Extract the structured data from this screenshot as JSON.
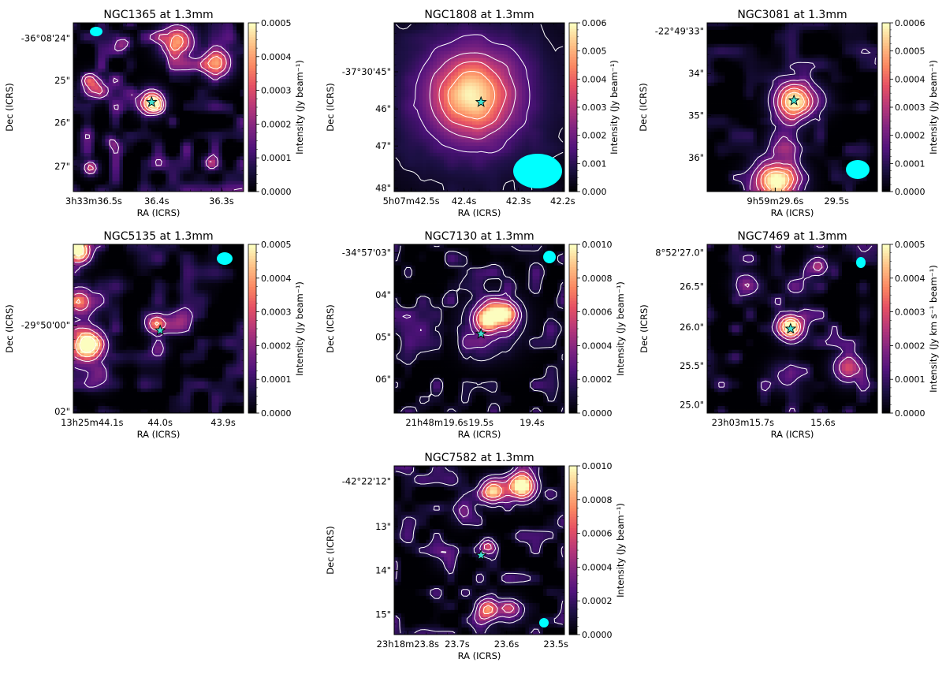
{
  "colors": {
    "colormap": "magma",
    "contour": "#ffffff",
    "beam": "#00ffff",
    "marker": "#40e0d0",
    "marker_edge": "#000000"
  },
  "chart_data": [
    {
      "type": "heatmap",
      "title": "NGC1365 at 1.3mm",
      "xlabel": "RA (ICRS)",
      "ylabel": "Dec (ICRS)",
      "xticks": [
        "3h33m36.5s",
        "36.4s",
        "36.3s"
      ],
      "yticks": [
        "-36°08'24\"",
        "25\"",
        "26\"",
        "27\""
      ],
      "cbar_label": "Intensity (Jy beam⁻¹)",
      "cbar_ticks": [
        "0.0000",
        "0.0001",
        "0.0002",
        "0.0003",
        "0.0004",
        "0.0005"
      ],
      "vmin": 0.0,
      "vmax": 0.0005,
      "beam_location": "top-left",
      "nucleus_marker": "star",
      "sources": [
        [
          0.46,
          0.47,
          0.05,
          0.0005
        ],
        [
          0.12,
          0.38,
          0.05,
          0.0003
        ],
        [
          0.61,
          0.11,
          0.07,
          0.0004
        ],
        [
          0.84,
          0.24,
          0.06,
          0.0004
        ],
        [
          0.1,
          0.86,
          0.03,
          0.0003
        ],
        [
          0.22,
          0.7,
          0.03,
          0.00015
        ],
        [
          0.8,
          0.83,
          0.03,
          0.0002
        ],
        [
          0.3,
          0.12,
          0.03,
          0.0002
        ]
      ],
      "noise_level": 0.38,
      "contour_levels": [
        0.00015,
        0.00025,
        0.00035,
        0.00045
      ]
    },
    {
      "type": "heatmap",
      "title": "NGC1808 at 1.3mm",
      "xlabel": "RA (ICRS)",
      "ylabel": "Dec (ICRS)",
      "xticks": [
        "5h07m42.5s",
        "42.4s",
        "42.3s",
        "42.2s"
      ],
      "yticks": [
        "-37°30'45\"",
        "46\"",
        "47\"",
        "48\""
      ],
      "cbar_label": "Intensity (Jy beam⁻¹)",
      "cbar_ticks": [
        "0.000",
        "0.001",
        "0.002",
        "0.003",
        "0.004",
        "0.005",
        "0.006"
      ],
      "vmin": 0.0,
      "vmax": 0.006,
      "beam_location": "bottom-right",
      "nucleus_marker": "star",
      "sources": [
        [
          0.46,
          0.43,
          0.16,
          0.0042
        ],
        [
          0.46,
          0.43,
          0.36,
          0.0016
        ]
      ],
      "noise_level": 0.05,
      "contour_levels": [
        0.0005,
        0.0015,
        0.0025,
        0.0035,
        0.0045
      ]
    },
    {
      "type": "heatmap",
      "title": "NGC3081 at 1.3mm",
      "xlabel": "RA (ICRS)",
      "ylabel": "Dec (ICRS)",
      "xticks": [
        "9h59m29.6s",
        "29.5s"
      ],
      "yticks": [
        "-22°49'33\"",
        "34\"",
        "35\"",
        "36\""
      ],
      "cbar_label": "Intensity (Jy beam⁻¹)",
      "cbar_ticks": [
        "0.0000",
        "0.0001",
        "0.0002",
        "0.0003",
        "0.0004",
        "0.0005",
        "0.0006"
      ],
      "vmin": 0.0,
      "vmax": 0.0006,
      "beam_location": "bottom-right",
      "nucleus_marker": "star",
      "sources": [
        [
          0.51,
          0.46,
          0.08,
          0.0006
        ],
        [
          0.41,
          0.94,
          0.09,
          0.0006
        ],
        [
          0.45,
          0.7,
          0.06,
          0.0002
        ],
        [
          0.66,
          0.46,
          0.06,
          8e-05
        ]
      ],
      "noise_level": 0.2,
      "contour_levels": [
        0.0001,
        0.0002,
        0.0003,
        0.0004,
        0.0005
      ]
    },
    {
      "type": "heatmap",
      "title": "NGC5135 at 1.3mm",
      "xlabel": "RA (ICRS)",
      "ylabel": "Dec (ICRS)",
      "xticks": [
        "13h25m44.1s",
        "44.0s",
        "43.9s"
      ],
      "yticks": [
        "-29°50'00\"",
        "02\""
      ],
      "cbar_label": "Intensity (Jy beam⁻¹)",
      "cbar_ticks": [
        "0.0000",
        "0.0001",
        "0.0002",
        "0.0003",
        "0.0004",
        "0.0005"
      ],
      "vmin": 0.0,
      "vmax": 0.0005,
      "beam_location": "top-right",
      "nucleus_marker": "star",
      "sources": [
        [
          0.03,
          0.04,
          0.05,
          0.0006
        ],
        [
          0.08,
          0.6,
          0.07,
          0.0006
        ],
        [
          0.04,
          0.34,
          0.06,
          0.00035
        ],
        [
          0.49,
          0.47,
          0.04,
          0.0004
        ],
        [
          0.62,
          0.45,
          0.05,
          0.00015
        ],
        [
          0.5,
          0.62,
          0.04,
          0.00012
        ],
        [
          0.15,
          0.8,
          0.05,
          0.0001
        ]
      ],
      "noise_level": 0.25,
      "contour_levels": [
        0.00012,
        0.00025,
        0.00038,
        0.0005
      ]
    },
    {
      "type": "heatmap",
      "title": "NGC7130 at 1.3mm",
      "xlabel": "RA (ICRS)",
      "ylabel": "Dec (ICRS)",
      "xticks": [
        "21h48m19.6s",
        "19.5s",
        "19.4s"
      ],
      "yticks": [
        "-34°57'03\"",
        "04\"",
        "05\"",
        "06\""
      ],
      "cbar_label": "Intensity (Jy beam⁻¹)",
      "cbar_ticks": [
        "0.0000",
        "0.0002",
        "0.0004",
        "0.0006",
        "0.0008",
        "0.0010"
      ],
      "vmin": 0.0,
      "vmax": 0.001,
      "beam_location": "top-right",
      "nucleus_marker": "star",
      "sources": [
        [
          0.55,
          0.44,
          0.05,
          0.0009
        ],
        [
          0.66,
          0.41,
          0.045,
          0.0008
        ],
        [
          0.58,
          0.46,
          0.12,
          0.0003
        ],
        [
          0.5,
          0.62,
          0.06,
          0.00012
        ]
      ],
      "noise_level": 0.3,
      "contour_levels": [
        0.0001,
        0.00025,
        0.0004,
        0.0006
      ]
    },
    {
      "type": "heatmap",
      "title": "NGC7469 at 1.3mm",
      "xlabel": "RA (ICRS)",
      "ylabel": "Dec (ICRS)",
      "xticks": [
        "23h03m15.7s",
        "15.6s"
      ],
      "yticks": [
        "8°52'27.0\"",
        "26.5\"",
        "26.0\"",
        "25.5\"",
        "25.0\""
      ],
      "cbar_label": "Intensity (Jy km s⁻¹ beam⁻¹)",
      "cbar_ticks": [
        "0.0000",
        "0.0001",
        "0.0002",
        "0.0003",
        "0.0004",
        "0.0005"
      ],
      "vmin": 0.0,
      "vmax": 0.0005,
      "beam_location": "top-right",
      "nucleus_marker": "star",
      "sources": [
        [
          0.49,
          0.49,
          0.05,
          0.0006
        ],
        [
          0.83,
          0.73,
          0.06,
          0.0003
        ],
        [
          0.65,
          0.13,
          0.04,
          0.00025
        ],
        [
          0.23,
          0.24,
          0.05,
          0.0002
        ],
        [
          0.52,
          0.25,
          0.05,
          0.00012
        ],
        [
          0.45,
          0.78,
          0.06,
          0.00012
        ]
      ],
      "noise_level": 0.3,
      "contour_levels": [
        0.0001,
        0.0002,
        0.0003,
        0.0004
      ]
    },
    {
      "type": "heatmap",
      "title": "NGC7582 at 1.3mm",
      "xlabel": "RA (ICRS)",
      "ylabel": "Dec (ICRS)",
      "xticks": [
        "23h18m23.8s",
        "23.7s",
        "23.6s",
        "23.5s"
      ],
      "yticks": [
        "-42°22'12\"",
        "13\"",
        "14\"",
        "15\""
      ],
      "cbar_label": "Intensity (Jy beam⁻¹)",
      "cbar_ticks": [
        "0.0000",
        "0.0002",
        "0.0004",
        "0.0006",
        "0.0008",
        "0.0010"
      ],
      "vmin": 0.0,
      "vmax": 0.001,
      "beam_location": "bottom-right",
      "nucleus_marker": "star",
      "sources": [
        [
          0.75,
          0.12,
          0.055,
          0.0012
        ],
        [
          0.58,
          0.15,
          0.05,
          0.0009
        ],
        [
          0.55,
          0.85,
          0.045,
          0.0008
        ],
        [
          0.68,
          0.86,
          0.05,
          0.0004
        ],
        [
          0.55,
          0.47,
          0.03,
          0.0005
        ],
        [
          0.4,
          0.28,
          0.05,
          0.0002
        ],
        [
          0.3,
          0.55,
          0.05,
          0.00012
        ]
      ],
      "noise_level": 0.3,
      "contour_levels": [
        0.00015,
        0.0003,
        0.0005,
        0.0007
      ]
    }
  ]
}
